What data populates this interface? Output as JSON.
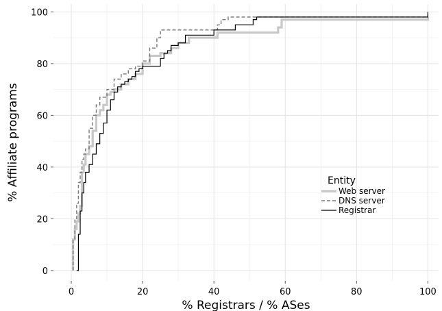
{
  "chart_data": {
    "type": "line",
    "subtype": "step-cdf",
    "xlabel": "% Registrars / % ASes",
    "ylabel": "% Affiliate programs",
    "xlim": [
      -5,
      103
    ],
    "ylim": [
      -4,
      103
    ],
    "x_ticks": [
      0,
      20,
      40,
      60,
      80,
      100
    ],
    "y_ticks": [
      0,
      20,
      40,
      60,
      80,
      100
    ],
    "grid": true,
    "legend": {
      "title": "Entity",
      "position": "inside-right",
      "entries": [
        "Web server",
        "DNS server",
        "Registrar"
      ]
    },
    "series": [
      {
        "name": "Web server",
        "color": "#c8c8c8",
        "style": "solid-thick",
        "x": [
          0.5,
          1,
          1.5,
          2,
          2.5,
          3,
          3.5,
          4,
          5,
          6,
          7,
          8,
          9,
          10,
          11,
          12,
          14,
          16,
          18,
          20,
          22,
          25,
          28,
          30,
          33,
          41,
          58,
          59,
          100
        ],
        "y": [
          12,
          16,
          19,
          22,
          25,
          38,
          41,
          45,
          48,
          54,
          60,
          62,
          64,
          68,
          69,
          70,
          72,
          74,
          76,
          80,
          83,
          84,
          86,
          88,
          90,
          92,
          94,
          97,
          98
        ]
      },
      {
        "name": "DNS server",
        "color": "#777777",
        "style": "dashed",
        "x": [
          0.5,
          1,
          1.5,
          2,
          2.5,
          3,
          3.5,
          4,
          5,
          6,
          7,
          8,
          10,
          12,
          14,
          16,
          18,
          20,
          22,
          24,
          25,
          41,
          42,
          44,
          100
        ],
        "y": [
          12,
          20,
          26,
          34,
          38,
          43,
          45,
          47,
          55,
          60,
          64,
          67,
          70,
          74,
          76,
          78,
          79,
          81,
          86,
          90,
          93,
          95,
          97,
          98,
          99
        ]
      },
      {
        "name": "Registrar",
        "color": "#000000",
        "style": "solid",
        "x": [
          1.5,
          2,
          2.5,
          3,
          3.5,
          4,
          5,
          6,
          7,
          8,
          9,
          10,
          11,
          12,
          13,
          14,
          15,
          16,
          17,
          18,
          19,
          20,
          25,
          26,
          27,
          28,
          30,
          32,
          40,
          46,
          51,
          52,
          100
        ],
        "y": [
          0,
          14,
          23,
          30,
          34,
          38,
          41,
          45,
          49,
          53,
          57,
          62,
          66,
          69,
          71,
          72,
          73,
          74,
          75,
          77,
          78,
          79,
          82,
          84,
          85,
          87,
          88,
          91,
          93,
          95,
          97,
          98,
          100
        ]
      }
    ]
  }
}
